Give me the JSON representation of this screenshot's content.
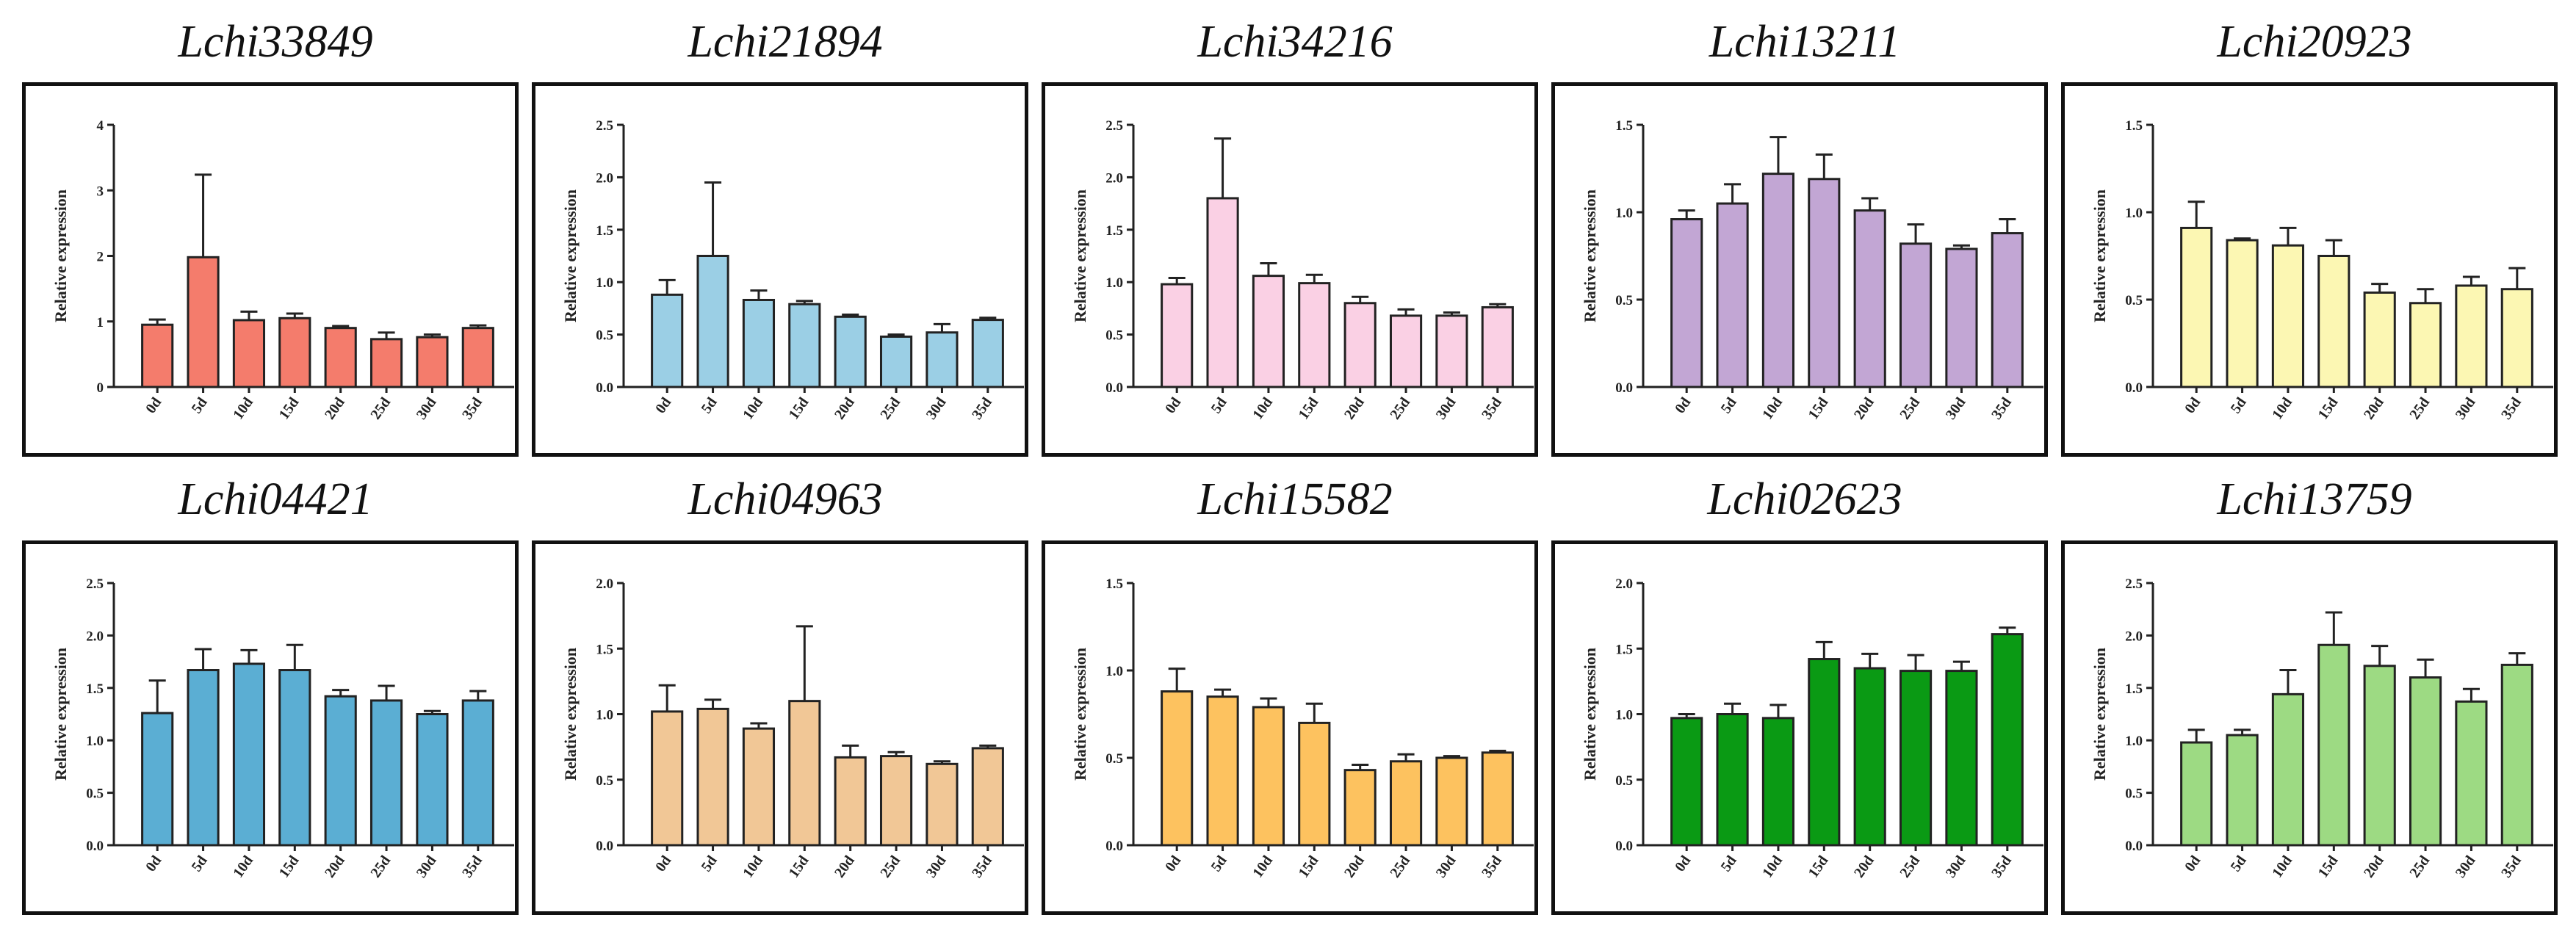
{
  "figure": {
    "ylabel": "Relative expression",
    "bar_stroke": "#222222",
    "axis_color": "#222222"
  },
  "chart_data": [
    {
      "type": "bar",
      "title": "Lchi33849",
      "color": "#F47C6C",
      "categories": [
        "0d",
        "5d",
        "10d",
        "15d",
        "20d",
        "25d",
        "30d",
        "35d"
      ],
      "values": [
        0.95,
        1.98,
        1.02,
        1.05,
        0.9,
        0.73,
        0.76,
        0.9
      ],
      "errors": [
        0.08,
        1.26,
        0.13,
        0.07,
        0.03,
        0.1,
        0.04,
        0.04
      ],
      "ylim": [
        0,
        4
      ],
      "yticks": [
        "0",
        "1",
        "2",
        "3",
        "4"
      ],
      "ylabel": "Relative expression",
      "xlabel": ""
    },
    {
      "type": "bar",
      "title": "Lchi21894",
      "color": "#9BCFE5",
      "categories": [
        "0d",
        "5d",
        "10d",
        "15d",
        "20d",
        "25d",
        "30d",
        "35d"
      ],
      "values": [
        0.88,
        1.25,
        0.83,
        0.79,
        0.67,
        0.48,
        0.52,
        0.64
      ],
      "errors": [
        0.14,
        0.7,
        0.09,
        0.03,
        0.02,
        0.02,
        0.08,
        0.02
      ],
      "ylim": [
        0,
        2.5
      ],
      "yticks": [
        "0.0",
        "0.5",
        "1.0",
        "1.5",
        "2.0",
        "2.5"
      ],
      "ylabel": "Relative expression",
      "xlabel": ""
    },
    {
      "type": "bar",
      "title": "Lchi34216",
      "color": "#FAD0E4",
      "categories": [
        "0d",
        "5d",
        "10d",
        "15d",
        "20d",
        "25d",
        "30d",
        "35d"
      ],
      "values": [
        0.98,
        1.8,
        1.06,
        0.99,
        0.8,
        0.68,
        0.68,
        0.76
      ],
      "errors": [
        0.06,
        0.57,
        0.12,
        0.08,
        0.06,
        0.06,
        0.03,
        0.03
      ],
      "ylim": [
        0,
        2.5
      ],
      "yticks": [
        "0.0",
        "0.5",
        "1.0",
        "1.5",
        "2.0",
        "2.5"
      ],
      "ylabel": "Relative expression",
      "xlabel": ""
    },
    {
      "type": "bar",
      "title": "Lchi13211",
      "color": "#C2A6D4",
      "categories": [
        "0d",
        "5d",
        "10d",
        "15d",
        "20d",
        "25d",
        "30d",
        "35d"
      ],
      "values": [
        0.96,
        1.05,
        1.22,
        1.19,
        1.01,
        0.82,
        0.79,
        0.88
      ],
      "errors": [
        0.05,
        0.11,
        0.21,
        0.14,
        0.07,
        0.11,
        0.02,
        0.08
      ],
      "ylim": [
        0,
        1.5
      ],
      "yticks": [
        "0.0",
        "0.5",
        "1.0",
        "1.5"
      ],
      "ylabel": "Relative expression",
      "xlabel": ""
    },
    {
      "type": "bar",
      "title": "Lchi20923",
      "color": "#FCF7B3",
      "categories": [
        "0d",
        "5d",
        "10d",
        "15d",
        "20d",
        "25d",
        "30d",
        "35d"
      ],
      "values": [
        0.91,
        0.84,
        0.81,
        0.75,
        0.54,
        0.48,
        0.58,
        0.56
      ],
      "errors": [
        0.15,
        0.01,
        0.1,
        0.09,
        0.05,
        0.08,
        0.05,
        0.12
      ],
      "ylim": [
        0,
        1.5
      ],
      "yticks": [
        "0.0",
        "0.5",
        "1.0",
        "1.5"
      ],
      "ylabel": "Relative expression",
      "xlabel": ""
    },
    {
      "type": "bar",
      "title": "Lchi04421",
      "color": "#5BAED3",
      "categories": [
        "0d",
        "5d",
        "10d",
        "15d",
        "20d",
        "25d",
        "30d",
        "35d"
      ],
      "values": [
        1.26,
        1.67,
        1.73,
        1.67,
        1.42,
        1.38,
        1.25,
        1.38
      ],
      "errors": [
        0.31,
        0.2,
        0.13,
        0.24,
        0.06,
        0.14,
        0.03,
        0.09
      ],
      "ylim": [
        0,
        2.5
      ],
      "yticks": [
        "0.0",
        "0.5",
        "1.0",
        "1.5",
        "2.0",
        "2.5"
      ],
      "ylabel": "Relative expression",
      "xlabel": ""
    },
    {
      "type": "bar",
      "title": "Lchi04963",
      "color": "#F1C796",
      "categories": [
        "0d",
        "5d",
        "10d",
        "15d",
        "20d",
        "25d",
        "30d",
        "35d"
      ],
      "values": [
        1.02,
        1.04,
        0.89,
        1.1,
        0.67,
        0.68,
        0.62,
        0.74
      ],
      "errors": [
        0.2,
        0.07,
        0.04,
        0.57,
        0.09,
        0.03,
        0.02,
        0.02
      ],
      "ylim": [
        0,
        2.0
      ],
      "yticks": [
        "0.0",
        "0.5",
        "1.0",
        "1.5",
        "2.0"
      ],
      "ylabel": "Relative expression",
      "xlabel": ""
    },
    {
      "type": "bar",
      "title": "Lchi15582",
      "color": "#FDC25F",
      "categories": [
        "0d",
        "5d",
        "10d",
        "15d",
        "20d",
        "25d",
        "30d",
        "35d"
      ],
      "values": [
        0.88,
        0.85,
        0.79,
        0.7,
        0.43,
        0.48,
        0.5,
        0.53
      ],
      "errors": [
        0.13,
        0.04,
        0.05,
        0.11,
        0.03,
        0.04,
        0.01,
        0.01
      ],
      "ylim": [
        0,
        1.5
      ],
      "yticks": [
        "0.0",
        "0.5",
        "1.0",
        "1.5"
      ],
      "ylabel": "Relative expression",
      "xlabel": ""
    },
    {
      "type": "bar",
      "title": "Lchi02623",
      "color": "#0A9A14",
      "categories": [
        "0d",
        "5d",
        "10d",
        "15d",
        "20d",
        "25d",
        "30d",
        "35d"
      ],
      "values": [
        0.97,
        1.0,
        0.97,
        1.42,
        1.35,
        1.33,
        1.33,
        1.61
      ],
      "errors": [
        0.03,
        0.08,
        0.1,
        0.13,
        0.11,
        0.12,
        0.07,
        0.05
      ],
      "ylim": [
        0,
        2.0
      ],
      "yticks": [
        "0.0",
        "0.5",
        "1.0",
        "1.5",
        "2.0"
      ],
      "ylabel": "Relative expression",
      "xlabel": ""
    },
    {
      "type": "bar",
      "title": "Lchi13759",
      "color": "#9DDA83",
      "categories": [
        "0d",
        "5d",
        "10d",
        "15d",
        "20d",
        "25d",
        "30d",
        "35d"
      ],
      "values": [
        0.98,
        1.05,
        1.44,
        1.91,
        1.71,
        1.6,
        1.37,
        1.72
      ],
      "errors": [
        0.12,
        0.05,
        0.23,
        0.31,
        0.19,
        0.17,
        0.12,
        0.11
      ],
      "ylim": [
        0,
        2.5
      ],
      "yticks": [
        "0.0",
        "0.5",
        "1.0",
        "1.5",
        "2.0",
        "2.5"
      ],
      "ylabel": "Relative expression",
      "xlabel": ""
    }
  ]
}
